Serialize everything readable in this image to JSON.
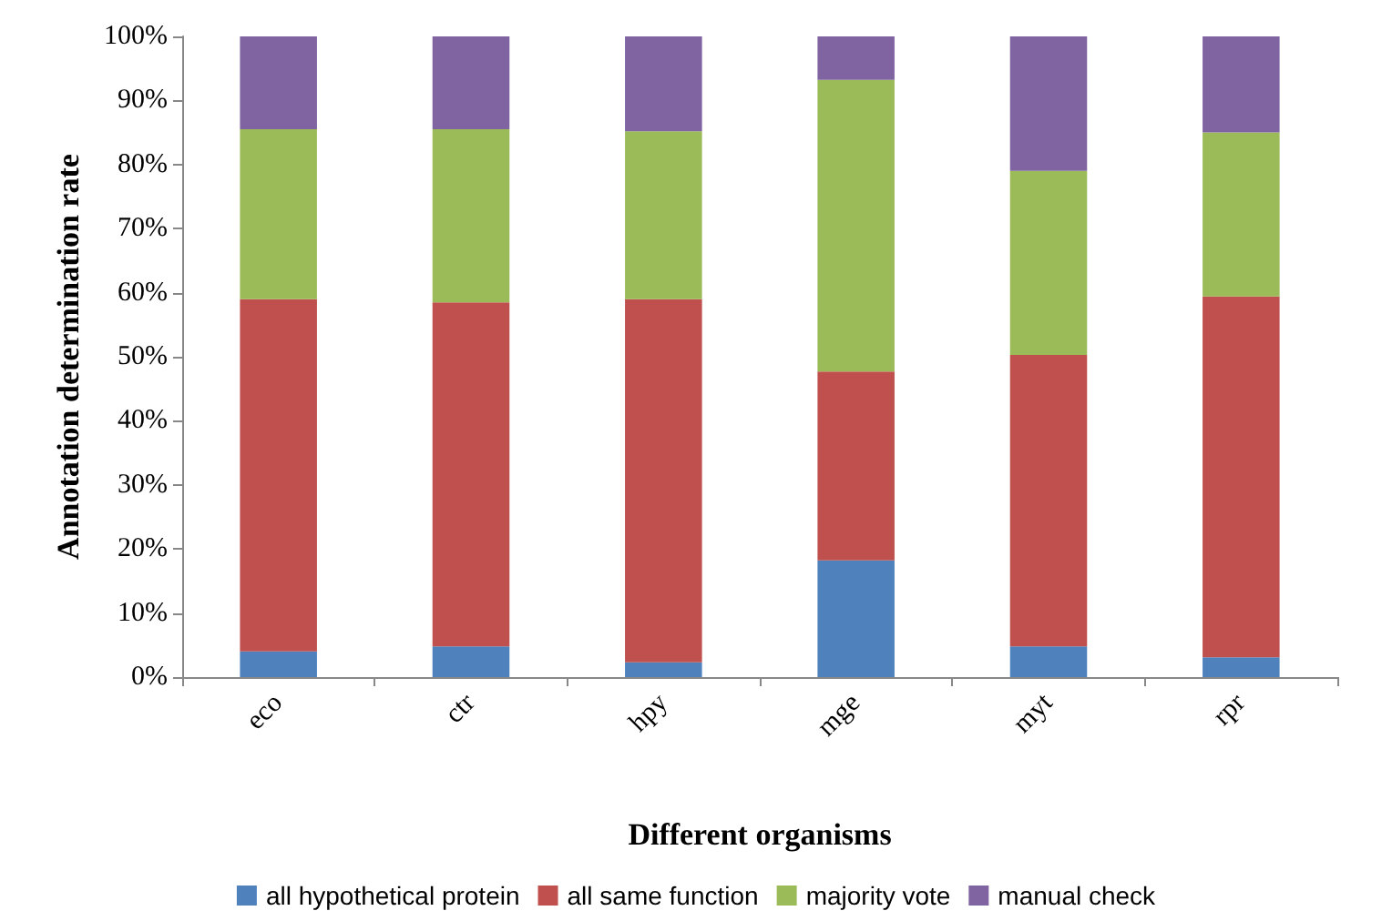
{
  "chart_data": {
    "type": "bar",
    "stacked": true,
    "xlabel": "Different organisms",
    "ylabel": "Annotation determination rate",
    "categories": [
      "eco",
      "ctr",
      "hpy",
      "mge",
      "myt",
      "rpr"
    ],
    "series": [
      {
        "name": "all hypothetical protein",
        "color": "#4f81bd",
        "values": [
          4,
          4.8,
          2.3,
          18.2,
          4.8,
          3.1
        ]
      },
      {
        "name": "all same function",
        "color": "#c0504d",
        "values": [
          55,
          53.7,
          56.7,
          29.5,
          45.5,
          56.3
        ]
      },
      {
        "name": "majority vote",
        "color": "#9bbb59",
        "values": [
          26.5,
          27,
          26.2,
          45.5,
          28.7,
          25.6
        ]
      },
      {
        "name": "manual check",
        "color": "#8064a2",
        "values": [
          14.5,
          14.5,
          14.8,
          6.8,
          21,
          15
        ]
      }
    ],
    "ylim": [
      0,
      100
    ],
    "yticks": [
      {
        "value": 0,
        "label": "0%"
      },
      {
        "value": 10,
        "label": "10%"
      },
      {
        "value": 20,
        "label": "20%"
      },
      {
        "value": 30,
        "label": "30%"
      },
      {
        "value": 40,
        "label": "40%"
      },
      {
        "value": 50,
        "label": "50%"
      },
      {
        "value": 60,
        "label": "60%"
      },
      {
        "value": 70,
        "label": "70%"
      },
      {
        "value": 80,
        "label": "80%"
      },
      {
        "value": 90,
        "label": "90%"
      },
      {
        "value": 100,
        "label": "100%"
      }
    ],
    "grid": false,
    "legend": "bottom"
  }
}
